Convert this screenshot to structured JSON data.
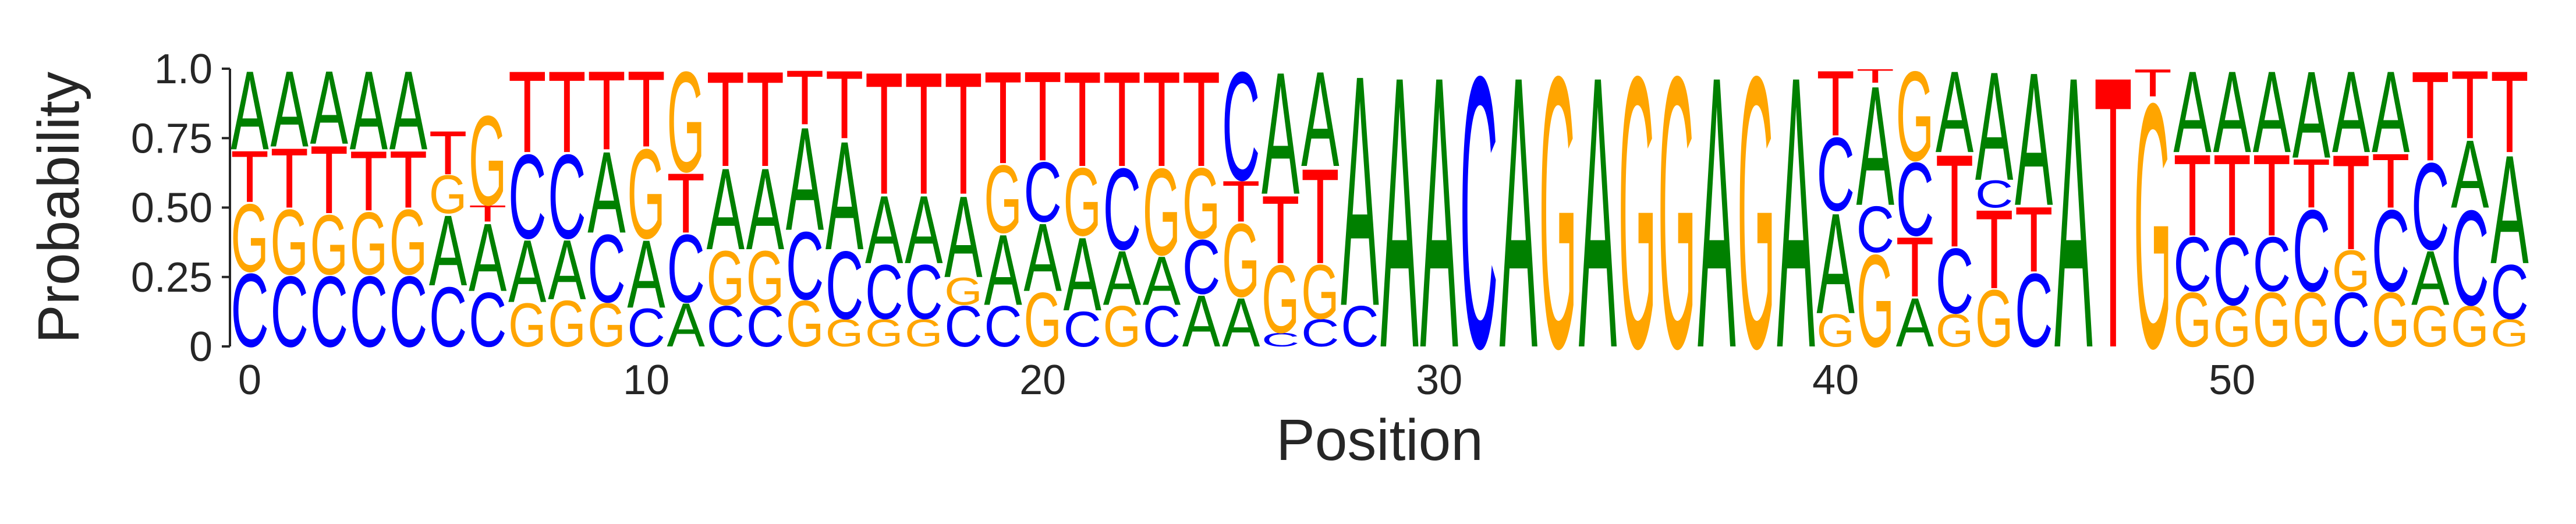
{
  "chart_data": {
    "type": "sequence-logo",
    "xlabel": "Position",
    "ylabel": "Probability",
    "xlim": [
      -0.5,
      57.5
    ],
    "ylim": [
      0,
      1.0
    ],
    "x_ticks": [
      0,
      10,
      20,
      30,
      40,
      50
    ],
    "x_tick_labels": [
      "0",
      "10",
      "20",
      "30",
      "40",
      "50"
    ],
    "y_ticks": [
      0,
      0.25,
      0.5,
      0.75,
      1.0
    ],
    "y_tick_labels": [
      "0",
      "0.25",
      "0.50",
      "0.75",
      "1.0"
    ],
    "grid": false,
    "colors": {
      "A": "#008000",
      "C": "#0000ff",
      "G": "#ffa500",
      "T": "#ff0000"
    },
    "letters": [
      "A",
      "C",
      "G",
      "T"
    ],
    "positions": [
      {
        "x": 0,
        "A": 0.29,
        "T": 0.19,
        "G": 0.25,
        "C": 0.27
      },
      {
        "x": 1,
        "A": 0.28,
        "T": 0.22,
        "G": 0.24,
        "C": 0.26
      },
      {
        "x": 2,
        "A": 0.27,
        "T": 0.25,
        "G": 0.22,
        "C": 0.26
      },
      {
        "x": 3,
        "A": 0.29,
        "T": 0.22,
        "G": 0.23,
        "C": 0.26
      },
      {
        "x": 4,
        "A": 0.29,
        "T": 0.21,
        "G": 0.24,
        "C": 0.26
      },
      {
        "x": 5,
        "A": 0.26,
        "T": 0.16,
        "G": 0.14,
        "C": 0.22,
        "order": [
          "C",
          "A",
          "G",
          "T"
        ]
      },
      {
        "x": 6,
        "A": 0.25,
        "T": 0.06,
        "G": 0.33,
        "C": 0.2,
        "order": [
          "C",
          "A",
          "T",
          "G"
        ]
      },
      {
        "x": 7,
        "A": 0.23,
        "T": 0.3,
        "G": 0.16,
        "C": 0.31,
        "order": [
          "G",
          "A",
          "C",
          "T"
        ]
      },
      {
        "x": 8,
        "A": 0.22,
        "T": 0.3,
        "G": 0.17,
        "C": 0.31,
        "order": [
          "G",
          "A",
          "C",
          "T"
        ]
      },
      {
        "x": 9,
        "A": 0.3,
        "T": 0.29,
        "G": 0.16,
        "C": 0.25,
        "order": [
          "G",
          "C",
          "A",
          "T"
        ]
      },
      {
        "x": 10,
        "A": 0.25,
        "T": 0.28,
        "G": 0.33,
        "C": 0.14,
        "order": [
          "C",
          "A",
          "G",
          "T"
        ]
      },
      {
        "x": 11,
        "A": 0.16,
        "T": 0.22,
        "G": 0.37,
        "C": 0.25,
        "order": [
          "A",
          "C",
          "T",
          "G"
        ]
      },
      {
        "x": 12,
        "A": 0.3,
        "T": 0.35,
        "G": 0.2,
        "C": 0.15,
        "order": [
          "C",
          "G",
          "A",
          "T"
        ]
      },
      {
        "x": 13,
        "A": 0.3,
        "T": 0.35,
        "G": 0.2,
        "C": 0.15,
        "order": [
          "C",
          "G",
          "A",
          "T"
        ]
      },
      {
        "x": 14,
        "A": 0.38,
        "T": 0.2,
        "G": 0.17,
        "C": 0.25,
        "order": [
          "G",
          "C",
          "A",
          "T"
        ]
      },
      {
        "x": 15,
        "A": 0.4,
        "T": 0.25,
        "G": 0.1,
        "C": 0.25,
        "order": [
          "G",
          "C",
          "A",
          "T"
        ]
      },
      {
        "x": 16,
        "A": 0.25,
        "T": 0.45,
        "G": 0.1,
        "C": 0.2,
        "order": [
          "G",
          "C",
          "A",
          "T"
        ]
      },
      {
        "x": 17,
        "A": 0.25,
        "T": 0.45,
        "G": 0.1,
        "C": 0.2,
        "order": [
          "G",
          "C",
          "A",
          "T"
        ]
      },
      {
        "x": 18,
        "A": 0.3,
        "T": 0.45,
        "G": 0.1,
        "C": 0.15,
        "order": [
          "C",
          "G",
          "A",
          "T"
        ]
      },
      {
        "x": 19,
        "A": 0.26,
        "T": 0.34,
        "G": 0.25,
        "C": 0.15,
        "order": [
          "C",
          "A",
          "G",
          "T"
        ]
      },
      {
        "x": 20,
        "A": 0.25,
        "T": 0.33,
        "G": 0.2,
        "C": 0.22,
        "order": [
          "G",
          "A",
          "C",
          "T"
        ]
      },
      {
        "x": 21,
        "A": 0.27,
        "T": 0.35,
        "G": 0.25,
        "C": 0.13,
        "order": [
          "C",
          "A",
          "G",
          "T"
        ]
      },
      {
        "x": 22,
        "A": 0.2,
        "T": 0.35,
        "G": 0.15,
        "C": 0.3,
        "order": [
          "G",
          "A",
          "C",
          "T"
        ]
      },
      {
        "x": 23,
        "A": 0.18,
        "T": 0.35,
        "G": 0.32,
        "C": 0.15,
        "order": [
          "C",
          "A",
          "G",
          "T"
        ]
      },
      {
        "x": 24,
        "A": 0.19,
        "T": 0.35,
        "G": 0.26,
        "C": 0.2,
        "order": [
          "A",
          "C",
          "G",
          "T"
        ]
      },
      {
        "x": 25,
        "A": 0.18,
        "T": 0.15,
        "G": 0.27,
        "C": 0.4,
        "order": [
          "A",
          "G",
          "T",
          "C"
        ]
      },
      {
        "x": 26,
        "A": 0.45,
        "T": 0.25,
        "G": 0.25,
        "C": 0.05,
        "order": [
          "C",
          "G",
          "T",
          "A"
        ]
      },
      {
        "x": 27,
        "A": 0.35,
        "T": 0.35,
        "G": 0.2,
        "C": 0.1,
        "order": [
          "C",
          "G",
          "T",
          "A"
        ]
      },
      {
        "x": 28,
        "A": 0.85,
        "T": 0,
        "G": 0,
        "C": 0.15,
        "order": [
          "C",
          "A"
        ]
      },
      {
        "x": 29,
        "A": 1.0,
        "T": 0,
        "G": 0,
        "C": 0,
        "order": [
          "A"
        ]
      },
      {
        "x": 30,
        "A": 1.0,
        "T": 0,
        "G": 0,
        "C": 0,
        "order": [
          "A"
        ]
      },
      {
        "x": 31,
        "A": 0,
        "T": 0,
        "G": 0,
        "C": 1.0,
        "order": [
          "C"
        ]
      },
      {
        "x": 32,
        "A": 1.0,
        "T": 0,
        "G": 0,
        "C": 0,
        "order": [
          "A"
        ]
      },
      {
        "x": 33,
        "A": 0,
        "T": 0,
        "G": 1.0,
        "C": 0,
        "order": [
          "G"
        ]
      },
      {
        "x": 34,
        "A": 1.0,
        "T": 0,
        "G": 0,
        "C": 0,
        "order": [
          "A"
        ]
      },
      {
        "x": 35,
        "A": 0,
        "T": 0,
        "G": 1.0,
        "C": 0,
        "order": [
          "G"
        ]
      },
      {
        "x": 36,
        "A": 0,
        "T": 0,
        "G": 1.0,
        "C": 0,
        "order": [
          "G"
        ]
      },
      {
        "x": 37,
        "A": 1.0,
        "T": 0,
        "G": 0,
        "C": 0,
        "order": [
          "A"
        ]
      },
      {
        "x": 38,
        "A": 0,
        "T": 0,
        "G": 1.0,
        "C": 0,
        "order": [
          "G"
        ]
      },
      {
        "x": 39,
        "A": 1.0,
        "T": 0,
        "G": 0,
        "C": 0,
        "order": [
          "A"
        ]
      },
      {
        "x": 40,
        "A": 0.37,
        "T": 0.24,
        "G": 0.12,
        "C": 0.27,
        "order": [
          "G",
          "A",
          "C",
          "T"
        ]
      },
      {
        "x": 41,
        "A": 0.44,
        "T": 0.05,
        "G": 0.34,
        "C": 0.17,
        "order": [
          "G",
          "C",
          "A",
          "T"
        ]
      },
      {
        "x": 42,
        "A": 0.18,
        "T": 0.22,
        "G": 0.33,
        "C": 0.27,
        "order": [
          "A",
          "T",
          "C",
          "G"
        ]
      },
      {
        "x": 43,
        "A": 0.3,
        "T": 0.34,
        "G": 0.12,
        "C": 0.24,
        "order": [
          "G",
          "C",
          "T",
          "A"
        ]
      },
      {
        "x": 44,
        "A": 0.4,
        "T": 0.29,
        "G": 0.21,
        "C": 0.1,
        "order": [
          "G",
          "T",
          "C",
          "A"
        ]
      },
      {
        "x": 45,
        "A": 0.49,
        "T": 0.24,
        "G": 0,
        "C": 0.27,
        "order": [
          "C",
          "T",
          "A"
        ]
      },
      {
        "x": 46,
        "A": 1.0,
        "T": 0,
        "G": 0,
        "C": 0,
        "order": [
          "A"
        ]
      },
      {
        "x": 47,
        "A": 0,
        "T": 1.0,
        "G": 0,
        "C": 0,
        "order": [
          "T"
        ]
      },
      {
        "x": 48,
        "A": 0,
        "T": 0.1,
        "G": 0.9,
        "C": 0,
        "order": [
          "G",
          "T"
        ]
      },
      {
        "x": 49,
        "A": 0.3,
        "T": 0.3,
        "G": 0.2,
        "C": 0.2,
        "order": [
          "G",
          "C",
          "T",
          "A"
        ]
      },
      {
        "x": 50,
        "A": 0.3,
        "T": 0.3,
        "G": 0.15,
        "C": 0.25,
        "order": [
          "G",
          "C",
          "T",
          "A"
        ]
      },
      {
        "x": 51,
        "A": 0.3,
        "T": 0.3,
        "G": 0.2,
        "C": 0.2,
        "order": [
          "G",
          "C",
          "T",
          "A"
        ]
      },
      {
        "x": 52,
        "A": 0.32,
        "T": 0.18,
        "G": 0.2,
        "C": 0.3,
        "order": [
          "G",
          "C",
          "T",
          "A"
        ]
      },
      {
        "x": 53,
        "A": 0.3,
        "T": 0.35,
        "G": 0.15,
        "C": 0.2,
        "order": [
          "C",
          "G",
          "T",
          "A"
        ]
      },
      {
        "x": 54,
        "A": 0.3,
        "T": 0.2,
        "G": 0.2,
        "C": 0.3,
        "order": [
          "G",
          "C",
          "T",
          "A"
        ]
      },
      {
        "x": 55,
        "A": 0.2,
        "T": 0.33,
        "G": 0.15,
        "C": 0.32,
        "order": [
          "G",
          "A",
          "C",
          "T"
        ]
      },
      {
        "x": 56,
        "A": 0.25,
        "T": 0.25,
        "G": 0.15,
        "C": 0.35,
        "order": [
          "G",
          "C",
          "A",
          "T"
        ]
      },
      {
        "x": 57,
        "A": 0.4,
        "T": 0.3,
        "G": 0.1,
        "C": 0.2,
        "order": [
          "G",
          "C",
          "A",
          "T"
        ]
      }
    ]
  }
}
